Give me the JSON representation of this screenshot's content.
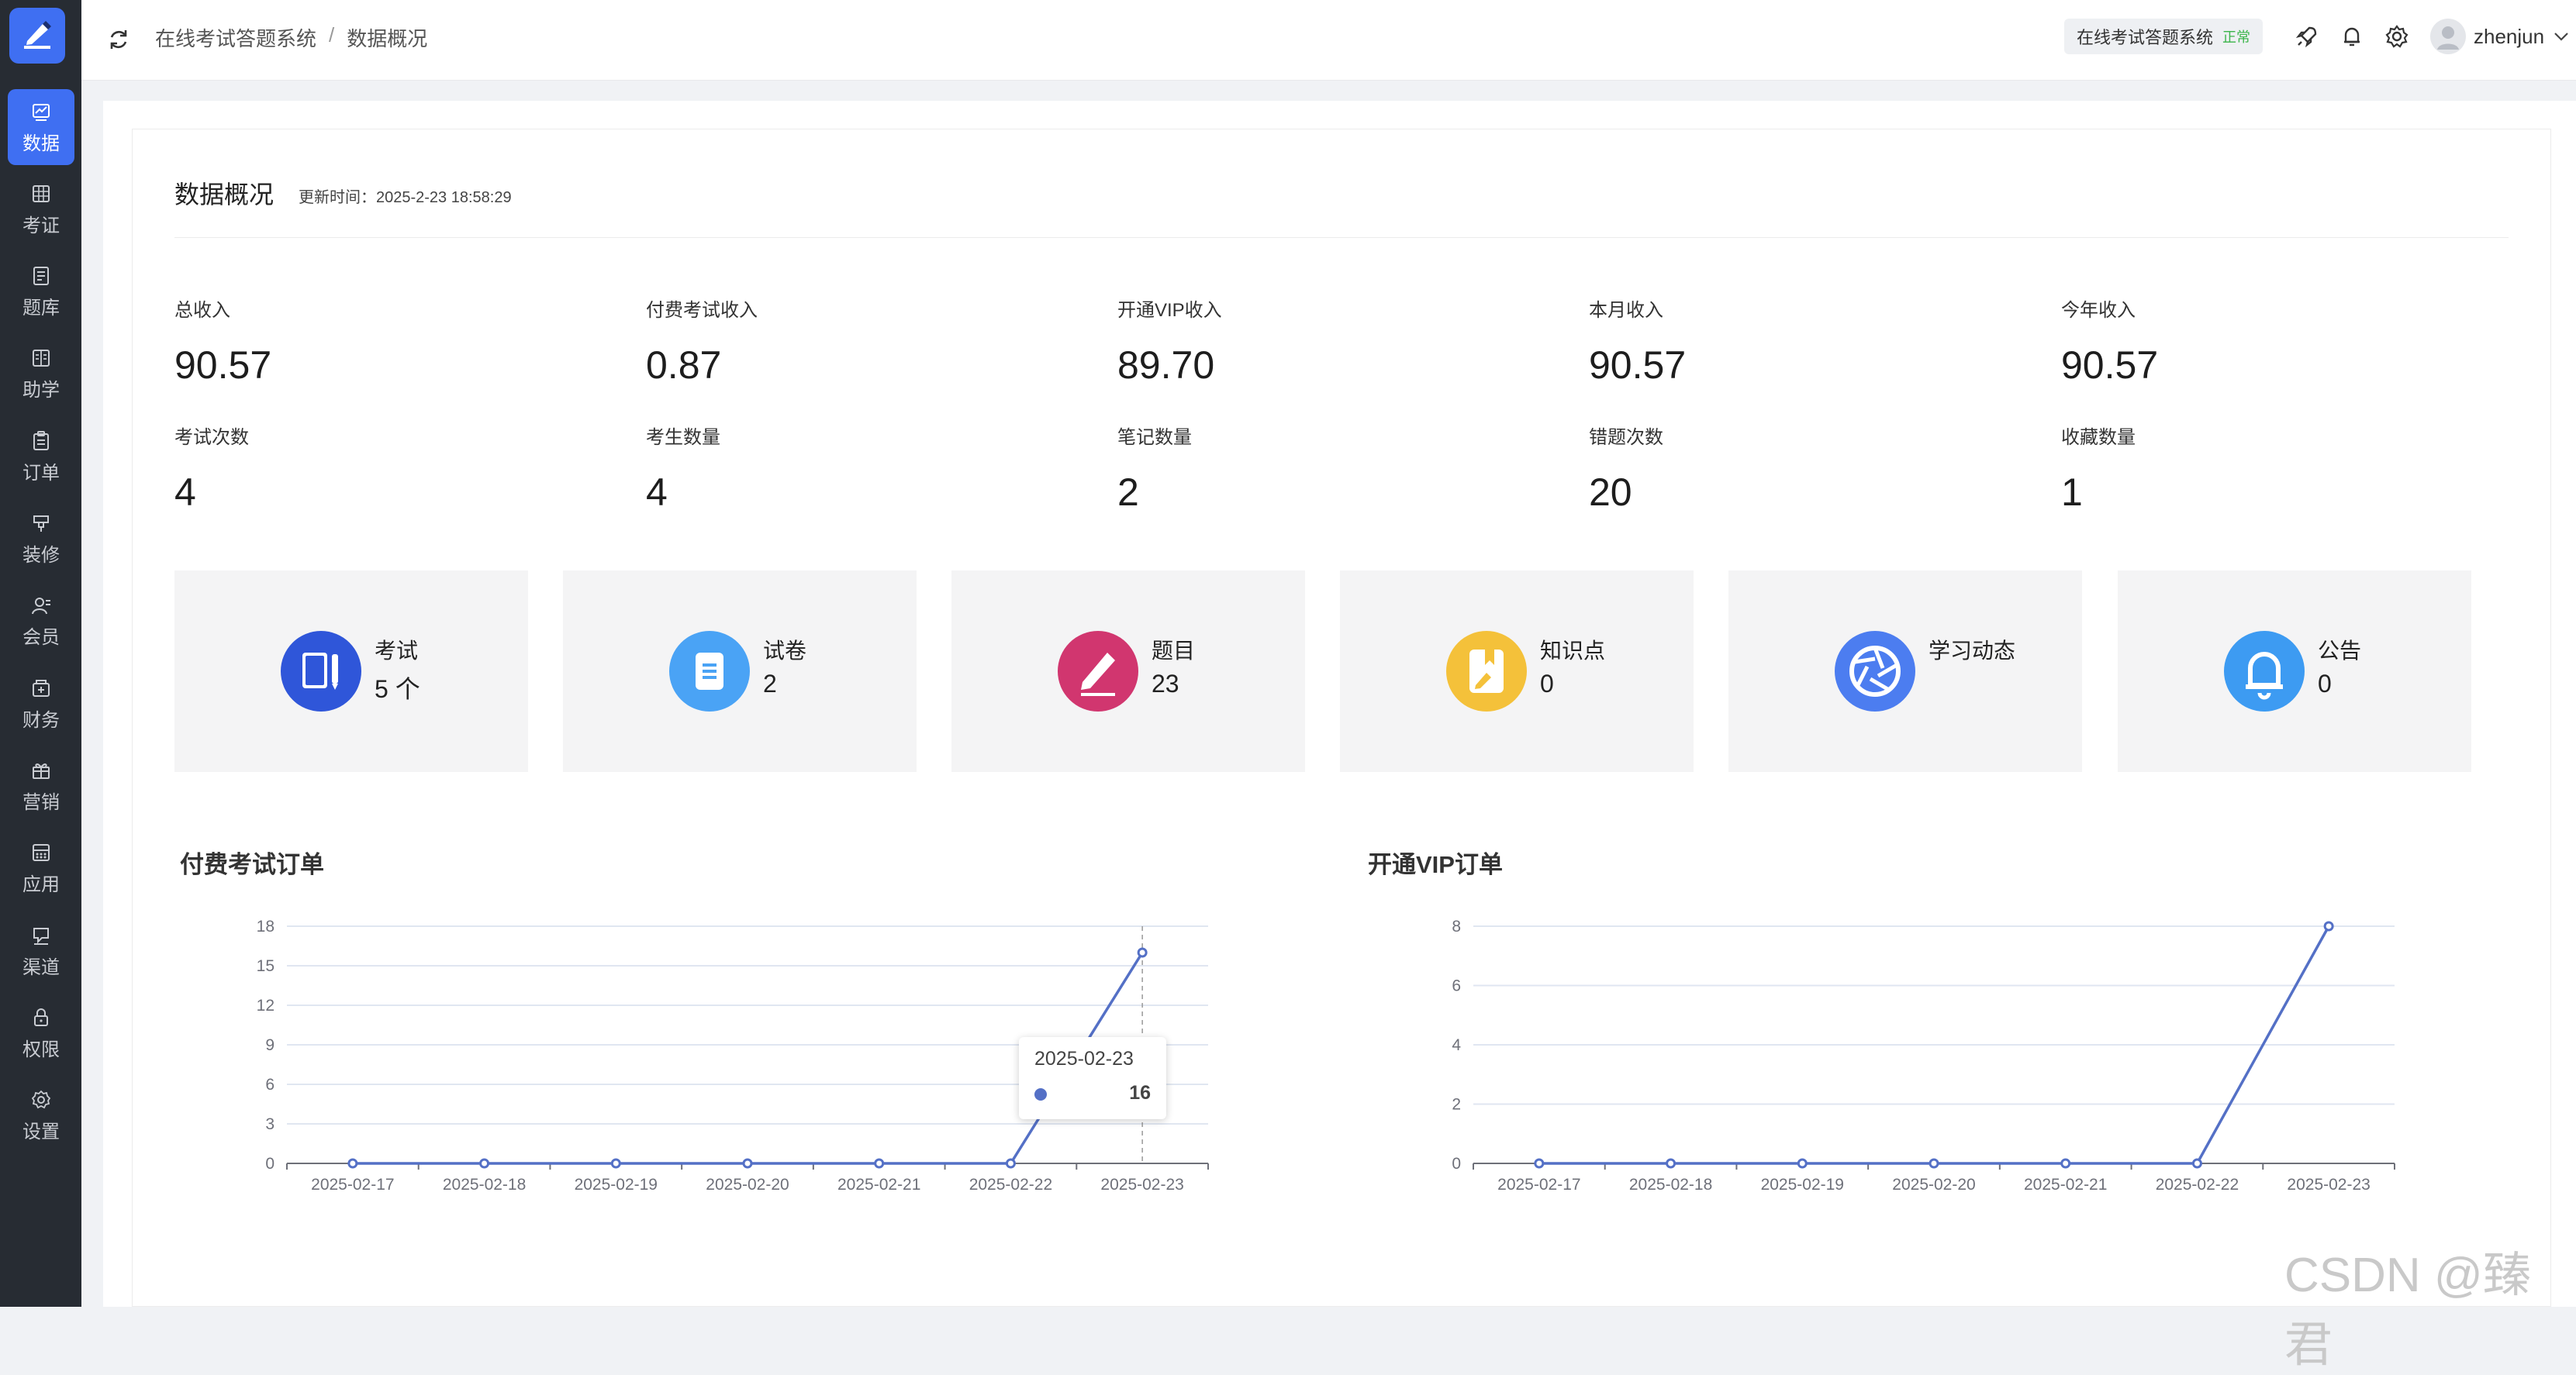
{
  "header": {
    "breadcrumbs": [
      "在线考试答题系统",
      "/",
      "数据概况"
    ],
    "system_badge": "在线考试答题系统",
    "system_status": "正常",
    "username": "zhenjun"
  },
  "sidebar": {
    "items": [
      {
        "label": "数据",
        "icon": "chart-icon",
        "active": true
      },
      {
        "label": "考证",
        "icon": "grid-icon"
      },
      {
        "label": "题库",
        "icon": "book-icon"
      },
      {
        "label": "助学",
        "icon": "reader-icon"
      },
      {
        "label": "订单",
        "icon": "clipboard-icon"
      },
      {
        "label": "装修",
        "icon": "brush-icon"
      },
      {
        "label": "会员",
        "icon": "user-icon"
      },
      {
        "label": "财务",
        "icon": "wallet-icon"
      },
      {
        "label": "营销",
        "icon": "gift-icon"
      },
      {
        "label": "应用",
        "icon": "apps-icon"
      },
      {
        "label": "渠道",
        "icon": "channel-icon"
      },
      {
        "label": "权限",
        "icon": "lock-icon"
      },
      {
        "label": "设置",
        "icon": "gear-icon"
      }
    ]
  },
  "overview": {
    "title": "数据概况",
    "updated": "更新时间：2025-2-23 18:58:29",
    "stats_row1": [
      {
        "label": "总收入",
        "value": "90.57"
      },
      {
        "label": "付费考试收入",
        "value": "0.87"
      },
      {
        "label": "开通VIP收入",
        "value": "89.70"
      },
      {
        "label": "本月收入",
        "value": "90.57"
      },
      {
        "label": "今年收入",
        "value": "90.57"
      }
    ],
    "stats_row2": [
      {
        "label": "考试次数",
        "value": "4"
      },
      {
        "label": "考生数量",
        "value": "4"
      },
      {
        "label": "笔记数量",
        "value": "2"
      },
      {
        "label": "错题次数",
        "value": "20"
      },
      {
        "label": "收藏数量",
        "value": "1"
      }
    ],
    "cards": [
      {
        "label": "考试",
        "value": "5 个",
        "icon": "exam-icon",
        "color": "#2f56d9"
      },
      {
        "label": "试卷",
        "value": "2",
        "icon": "paper-icon",
        "color": "#4aa3f5"
      },
      {
        "label": "题目",
        "value": "23",
        "icon": "question-pen-icon",
        "color": "#d1366f"
      },
      {
        "label": "知识点",
        "value": "0",
        "icon": "knowledge-icon",
        "color": "#f4c13a"
      },
      {
        "label": "学习动态",
        "value": "",
        "icon": "aperture-icon",
        "color": "#4c7df0"
      },
      {
        "label": "公告",
        "value": "0",
        "icon": "bell-icon",
        "color": "#3d9bf2"
      }
    ]
  },
  "chart_data": [
    {
      "type": "line",
      "title": "付费考试订单",
      "categories": [
        "2025-02-17",
        "2025-02-18",
        "2025-02-19",
        "2025-02-20",
        "2025-02-21",
        "2025-02-22",
        "2025-02-23"
      ],
      "series": [
        {
          "values": [
            0,
            0,
            0,
            0,
            0,
            0,
            16
          ],
          "color": "#5470c6"
        }
      ],
      "ylim": [
        0,
        18
      ],
      "yticks": [
        0,
        3,
        6,
        9,
        12,
        15,
        18
      ],
      "grid": true,
      "tooltip": {
        "category": "2025-02-23",
        "value": "16"
      }
    },
    {
      "type": "line",
      "title": "开通VIP订单",
      "categories": [
        "2025-02-17",
        "2025-02-18",
        "2025-02-19",
        "2025-02-20",
        "2025-02-21",
        "2025-02-22",
        "2025-02-23"
      ],
      "series": [
        {
          "values": [
            0,
            0,
            0,
            0,
            0,
            0,
            8
          ],
          "color": "#5470c6"
        }
      ],
      "ylim": [
        0,
        8
      ],
      "yticks": [
        0,
        2,
        4,
        6,
        8
      ],
      "grid": true
    }
  ],
  "watermark": "CSDN @臻君"
}
